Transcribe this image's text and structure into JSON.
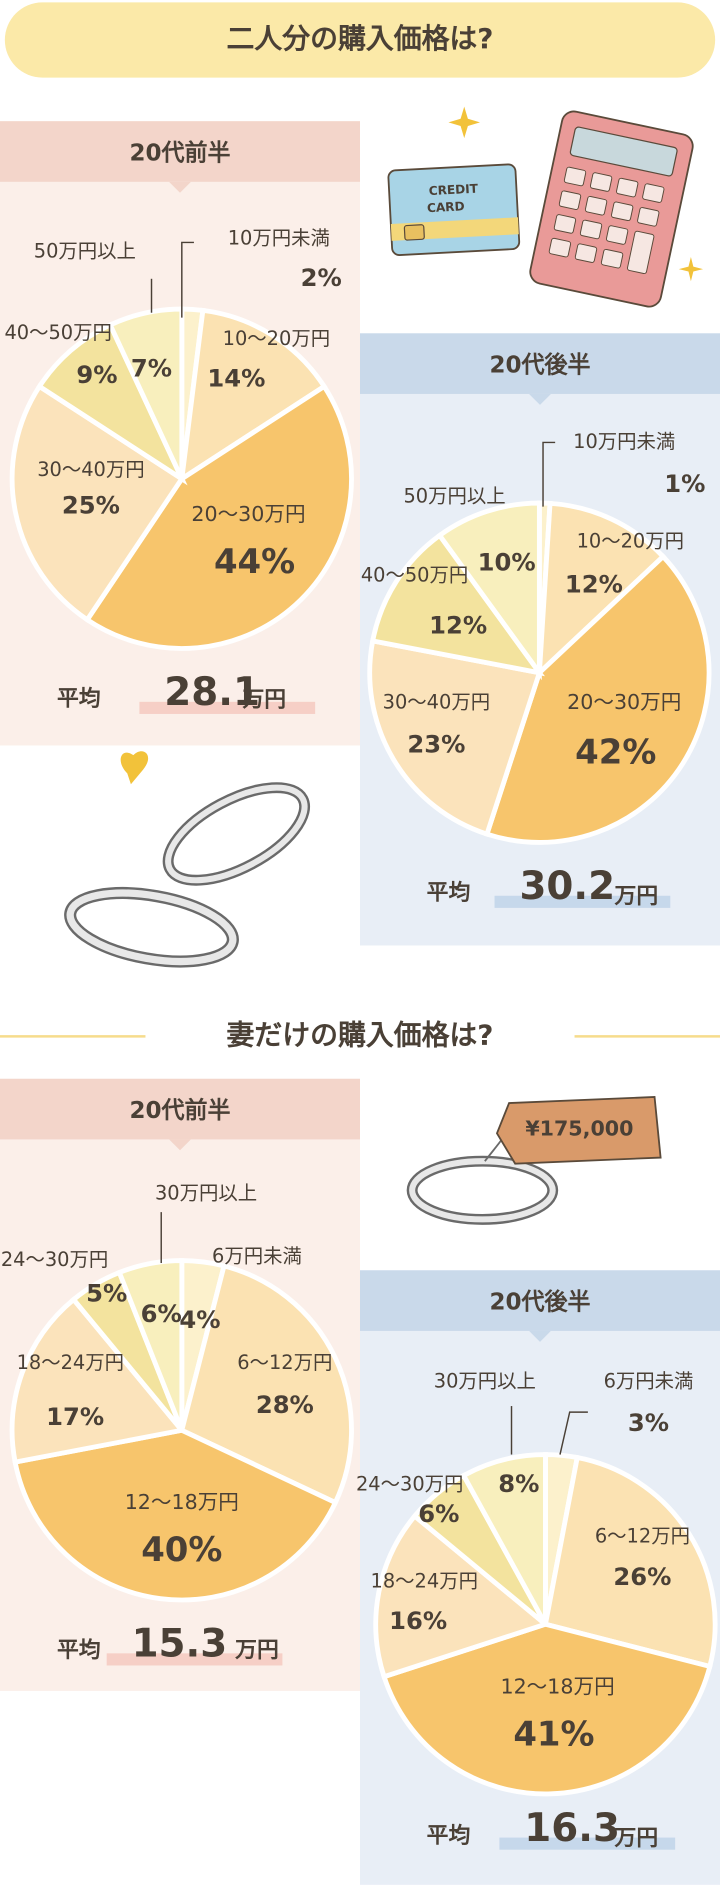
{
  "headings": [
    "二人分の購入価格は?",
    "妻だけの購入価格は?"
  ],
  "illustrations": {
    "card_text": [
      "CREDIT",
      "CARD"
    ],
    "tag_text": "¥175,000"
  },
  "chart_data": [
    {
      "type": "pie",
      "title": "20代前半",
      "categories": [
        "10万円未満",
        "10～20万円",
        "20～30万円",
        "30～40万円",
        "40～50万円",
        "50万円以上"
      ],
      "values": [
        2,
        14,
        44,
        25,
        9,
        7
      ],
      "value_labels": [
        "2%",
        "14%",
        "44%",
        "25%",
        "9%",
        "7%"
      ],
      "colors": [
        "#fcf1cc",
        "#fbe2b2",
        "#f7c56c",
        "#fbe3bb",
        "#f3e39e",
        "#f8efbd"
      ],
      "average": {
        "label": "平均",
        "value": 28.1,
        "unit": "万円"
      }
    },
    {
      "type": "pie",
      "title": "20代後半",
      "categories": [
        "10万円未満",
        "10～20万円",
        "20～30万円",
        "30～40万円",
        "40～50万円",
        "50万円以上"
      ],
      "values": [
        1,
        12,
        42,
        23,
        12,
        10
      ],
      "value_labels": [
        "1%",
        "12%",
        "42%",
        "23%",
        "12%",
        "10%"
      ],
      "colors": [
        "#fcf1cc",
        "#fbe2b2",
        "#f7c56c",
        "#fbe3bb",
        "#f3e39e",
        "#f8efbd"
      ],
      "average": {
        "label": "平均",
        "value": 30.2,
        "unit": "万円"
      }
    },
    {
      "type": "pie",
      "title": "20代前半",
      "categories": [
        "6万円未満",
        "6～12万円",
        "12～18万円",
        "18～24万円",
        "24～30万円",
        "30万円以上"
      ],
      "values": [
        4,
        28,
        40,
        17,
        5,
        6
      ],
      "value_labels": [
        "4%",
        "28%",
        "40%",
        "17%",
        "5%",
        "6%"
      ],
      "colors": [
        "#fcf1cc",
        "#fbe2b2",
        "#f7c56c",
        "#fbe3bb",
        "#f3e39e",
        "#f8efbd"
      ],
      "average": {
        "label": "平均",
        "value": 15.3,
        "unit": "万円"
      }
    },
    {
      "type": "pie",
      "title": "20代後半",
      "categories": [
        "6万円未満",
        "6～12万円",
        "12～18万円",
        "18～24万円",
        "24～30万円",
        "30万円以上"
      ],
      "values": [
        3,
        26,
        41,
        16,
        6,
        8
      ],
      "value_labels": [
        "3%",
        "26%",
        "41%",
        "16%",
        "6%",
        "8%"
      ],
      "colors": [
        "#fcf1cc",
        "#fbe2b2",
        "#f7c56c",
        "#fbe3bb",
        "#f3e39e",
        "#f8efbd"
      ],
      "average": {
        "label": "平均",
        "value": 16.3,
        "unit": "万円"
      }
    }
  ]
}
